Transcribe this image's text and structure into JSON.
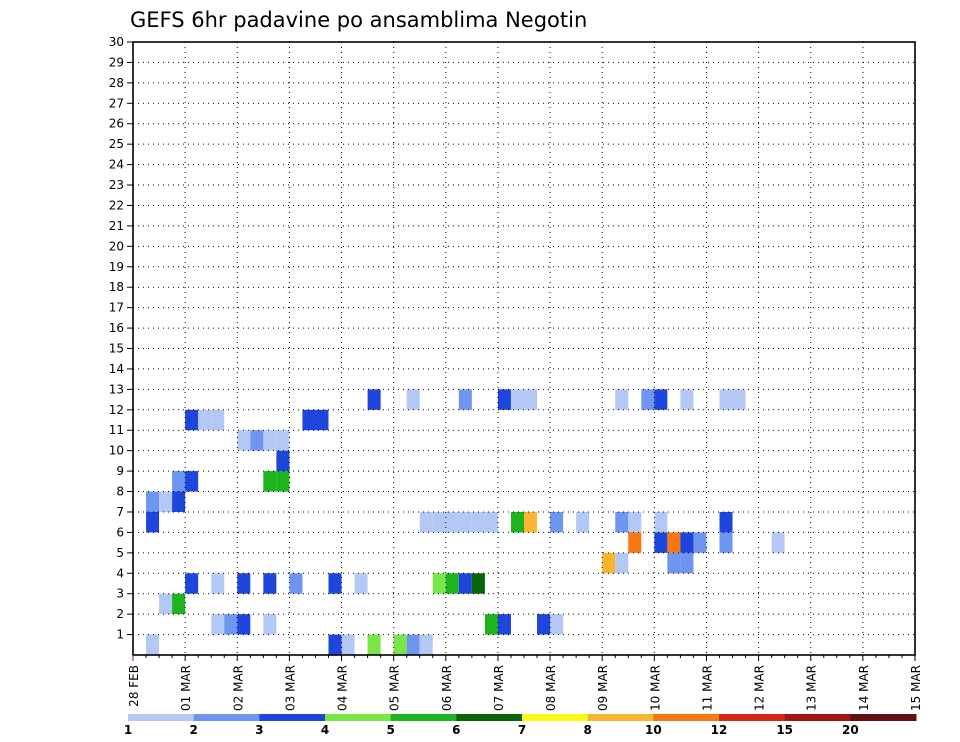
{
  "chart_data": {
    "type": "heatmap",
    "title": "GEFS 6hr padavine po ansamblima Negotin",
    "xlabel": "",
    "ylabel": "",
    "x_tick_labels": [
      "28 FEB",
      "01 MAR",
      "02 MAR",
      "03 MAR",
      "04 MAR",
      "05 MAR",
      "06 MAR",
      "07 MAR",
      "08 MAR",
      "09 MAR",
      "10 MAR",
      "11 MAR",
      "12 MAR",
      "13 MAR",
      "14 MAR",
      "15 MAR"
    ],
    "y_tick_labels": [
      "1",
      "2",
      "3",
      "4",
      "5",
      "6",
      "7",
      "8",
      "9",
      "10",
      "11",
      "12",
      "13",
      "14",
      "15",
      "16",
      "17",
      "18",
      "19",
      "20",
      "21",
      "22",
      "23",
      "24",
      "25",
      "26",
      "27",
      "28",
      "29",
      "30"
    ],
    "xlim": [
      0,
      15
    ],
    "ylim": [
      0,
      30
    ],
    "grid": true,
    "time_step_days": 0.25,
    "legend": {
      "placement": "bottom",
      "labels": [
        "1",
        "2",
        "3",
        "4",
        "5",
        "6",
        "7",
        "8",
        "10",
        "12",
        "15",
        "20"
      ],
      "colors": [
        "#b4c8f5",
        "#6e96f0",
        "#1e46dc",
        "#78e646",
        "#1eb41e",
        "#0a640a",
        "#fafa14",
        "#fab432",
        "#f57814",
        "#d72814",
        "#a01414",
        "#641010"
      ]
    },
    "cells": [
      [
        0.25,
        1,
        1
      ],
      [
        0.25,
        8,
        2
      ],
      [
        1.5,
        2,
        1
      ],
      [
        1.75,
        2,
        2
      ],
      [
        2.0,
        2,
        3
      ],
      [
        2.5,
        2,
        1
      ],
      [
        0.25,
        7,
        3
      ],
      [
        3.75,
        1,
        3
      ],
      [
        4.0,
        1,
        1
      ],
      [
        4.5,
        1,
        4
      ],
      [
        5.0,
        1,
        4
      ],
      [
        5.25,
        1,
        2
      ],
      [
        5.5,
        1,
        1
      ],
      [
        6.75,
        2,
        5
      ],
      [
        7.0,
        2,
        3
      ],
      [
        7.75,
        2,
        3
      ],
      [
        8.0,
        2,
        1
      ],
      [
        0.5,
        3,
        1
      ],
      [
        0.75,
        3,
        5
      ],
      [
        1.0,
        4,
        3
      ],
      [
        1.5,
        4,
        1
      ],
      [
        2.0,
        4,
        3
      ],
      [
        2.5,
        4,
        3
      ],
      [
        3.0,
        4,
        2
      ],
      [
        3.75,
        4,
        3
      ],
      [
        4.25,
        4,
        1
      ],
      [
        5.75,
        4,
        4
      ],
      [
        6.0,
        4,
        5
      ],
      [
        6.25,
        4,
        3
      ],
      [
        6.5,
        4,
        6
      ],
      [
        9.0,
        5,
        8
      ],
      [
        9.25,
        5,
        1
      ],
      [
        10.25,
        5,
        2
      ],
      [
        10.5,
        5,
        2
      ],
      [
        9.5,
        6,
        9
      ],
      [
        10.0,
        6,
        3
      ],
      [
        10.25,
        6,
        9
      ],
      [
        10.5,
        6,
        3
      ],
      [
        10.75,
        6,
        2
      ],
      [
        11.25,
        6,
        2
      ],
      [
        12.25,
        6,
        1
      ],
      [
        5.5,
        7,
        1
      ],
      [
        5.75,
        7,
        1
      ],
      [
        6.0,
        7,
        1
      ],
      [
        6.25,
        7,
        1
      ],
      [
        6.5,
        7,
        1
      ],
      [
        6.75,
        7,
        1
      ],
      [
        7.25,
        7,
        5
      ],
      [
        7.5,
        7,
        8
      ],
      [
        8.0,
        7,
        2
      ],
      [
        8.5,
        7,
        1
      ],
      [
        9.25,
        7,
        2
      ],
      [
        9.5,
        7,
        1
      ],
      [
        10.0,
        7,
        1
      ],
      [
        11.25,
        7,
        3
      ],
      [
        0.5,
        8,
        1
      ],
      [
        0.75,
        8,
        3
      ],
      [
        0.75,
        9,
        2
      ],
      [
        1.0,
        9,
        3
      ],
      [
        2.5,
        9,
        5
      ],
      [
        2.75,
        9,
        5
      ],
      [
        2.75,
        10,
        3
      ],
      [
        2.75,
        11,
        1
      ],
      [
        2.5,
        11,
        1
      ],
      [
        2.0,
        11,
        1
      ],
      [
        2.25,
        11,
        2
      ],
      [
        3.25,
        12,
        3
      ],
      [
        3.5,
        12,
        3
      ],
      [
        1.0,
        12,
        3
      ],
      [
        1.25,
        12,
        1
      ],
      [
        1.5,
        12,
        1
      ],
      [
        4.5,
        13,
        3
      ],
      [
        5.25,
        13,
        1
      ],
      [
        6.25,
        13,
        2
      ],
      [
        7.0,
        13,
        3
      ],
      [
        7.25,
        13,
        1
      ],
      [
        7.5,
        13,
        1
      ],
      [
        9.25,
        13,
        1
      ],
      [
        9.75,
        13,
        2
      ],
      [
        10.0,
        13,
        3
      ],
      [
        10.5,
        13,
        1
      ],
      [
        11.25,
        13,
        1
      ],
      [
        11.5,
        13,
        1
      ]
    ]
  }
}
